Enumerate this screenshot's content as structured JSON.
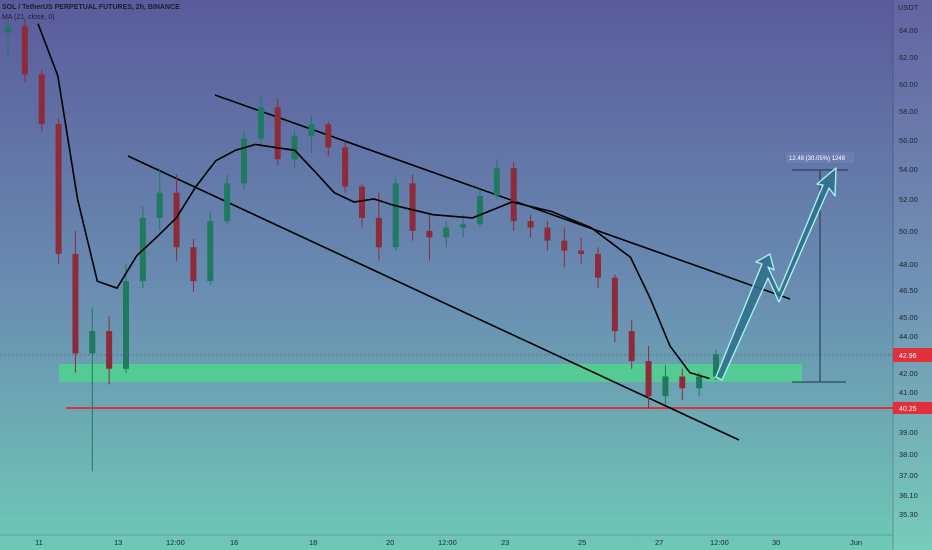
{
  "legend": {
    "symbol": "SOL / TetherUS PERPETUAL FUTURES, 2h, BINANCE",
    "indicator": "MA (21, close, 0)"
  },
  "chart_data": {
    "type": "candlestick",
    "title": "SOL / TetherUS PERPETUAL FUTURES, 2h, BINANCE",
    "currency_label": "USDT",
    "y_scale": "log",
    "y_ticks": [
      64.0,
      62.0,
      60.0,
      58.0,
      56.0,
      54.0,
      52.0,
      50.0,
      48.0,
      46.5,
      45.0,
      44.0,
      42.0,
      41.0,
      39.0,
      38.0,
      37.0,
      36.1,
      35.3
    ],
    "x_ticks": [
      "11",
      "13",
      "12:00",
      "16",
      "18",
      "20",
      "12:00",
      "23",
      "25",
      "27",
      "12:00",
      "30",
      "Jun"
    ],
    "last_price_tag": "42.96",
    "support_price_tag": "40.25",
    "measure_label": "12.48 (30.05%) 1248",
    "ma_label": "MA (21, close, 0)",
    "ma_points": [
      {
        "x": "11",
        "y": 64.5
      },
      {
        "x": "11.5",
        "y": 60.5
      },
      {
        "x": "12",
        "y": 52.0
      },
      {
        "x": "12.5",
        "y": 47.0
      },
      {
        "x": "13",
        "y": 46.6
      },
      {
        "x": "13.5",
        "y": 48.5
      },
      {
        "x": "14",
        "y": 49.6
      },
      {
        "x": "14.5",
        "y": 50.8
      },
      {
        "x": "15",
        "y": 52.8
      },
      {
        "x": "15.5",
        "y": 54.5
      },
      {
        "x": "16",
        "y": 55.2
      },
      {
        "x": "16.5",
        "y": 55.6
      },
      {
        "x": "17",
        "y": 55.4
      },
      {
        "x": "17.5",
        "y": 55.2
      },
      {
        "x": "18",
        "y": 53.8
      },
      {
        "x": "18.5",
        "y": 52.4
      },
      {
        "x": "19",
        "y": 51.8
      },
      {
        "x": "19.5",
        "y": 52.0
      },
      {
        "x": "20",
        "y": 51.6
      },
      {
        "x": "21",
        "y": 51.0
      },
      {
        "x": "22",
        "y": 50.8
      },
      {
        "x": "23",
        "y": 51.8
      },
      {
        "x": "24",
        "y": 51.2
      },
      {
        "x": "25",
        "y": 50.2
      },
      {
        "x": "26",
        "y": 48.4
      },
      {
        "x": "26.5",
        "y": 46.0
      },
      {
        "x": "27",
        "y": 43.4
      },
      {
        "x": "27.5",
        "y": 42.0
      },
      {
        "x": "28",
        "y": 41.7
      }
    ],
    "candles_approx": [
      {
        "t": "11",
        "o": 63.8,
        "h": 65.0,
        "l": 62.0,
        "c": 64.3
      },
      {
        "t": "11",
        "o": 64.3,
        "h": 64.8,
        "l": 60.0,
        "c": 60.6
      },
      {
        "t": "11",
        "o": 60.6,
        "h": 61.0,
        "l": 56.5,
        "c": 57.0
      },
      {
        "t": "12",
        "o": 57.0,
        "h": 57.4,
        "l": 48.0,
        "c": 48.6
      },
      {
        "t": "12",
        "o": 48.6,
        "h": 50.0,
        "l": 42.0,
        "c": 43.0
      },
      {
        "t": "12",
        "o": 43.0,
        "h": 45.5,
        "l": 37.2,
        "c": 44.2
      },
      {
        "t": "12",
        "o": 44.2,
        "h": 45.0,
        "l": 41.4,
        "c": 42.2
      },
      {
        "t": "13",
        "o": 42.2,
        "h": 48.0,
        "l": 42.0,
        "c": 47.0
      },
      {
        "t": "13",
        "o": 47.0,
        "h": 51.5,
        "l": 46.6,
        "c": 50.8
      },
      {
        "t": "13",
        "o": 50.8,
        "h": 54.0,
        "l": 50.0,
        "c": 52.4
      },
      {
        "t": "14",
        "o": 52.4,
        "h": 53.6,
        "l": 48.2,
        "c": 49.0
      },
      {
        "t": "14",
        "o": 49.0,
        "h": 49.5,
        "l": 46.4,
        "c": 47.0
      },
      {
        "t": "14",
        "o": 47.0,
        "h": 51.2,
        "l": 46.8,
        "c": 50.6
      },
      {
        "t": "15",
        "o": 50.6,
        "h": 53.6,
        "l": 50.4,
        "c": 53.0
      },
      {
        "t": "15",
        "o": 53.0,
        "h": 56.5,
        "l": 52.6,
        "c": 56.0
      },
      {
        "t": "15",
        "o": 56.0,
        "h": 59.0,
        "l": 55.5,
        "c": 58.2
      },
      {
        "t": "16",
        "o": 58.2,
        "h": 58.8,
        "l": 54.2,
        "c": 54.6
      },
      {
        "t": "16",
        "o": 54.6,
        "h": 56.6,
        "l": 54.0,
        "c": 56.2
      },
      {
        "t": "17",
        "o": 56.2,
        "h": 57.6,
        "l": 55.0,
        "c": 57.0
      },
      {
        "t": "17",
        "o": 57.0,
        "h": 57.2,
        "l": 54.8,
        "c": 55.4
      },
      {
        "t": "18",
        "o": 55.4,
        "h": 55.8,
        "l": 52.4,
        "c": 52.8
      },
      {
        "t": "18",
        "o": 52.8,
        "h": 53.0,
        "l": 50.2,
        "c": 50.8
      },
      {
        "t": "19",
        "o": 50.8,
        "h": 52.4,
        "l": 48.2,
        "c": 49.0
      },
      {
        "t": "19",
        "o": 49.0,
        "h": 53.4,
        "l": 48.8,
        "c": 53.0
      },
      {
        "t": "20",
        "o": 53.0,
        "h": 53.6,
        "l": 49.4,
        "c": 50.0
      },
      {
        "t": "20",
        "o": 50.0,
        "h": 51.0,
        "l": 48.2,
        "c": 49.6
      },
      {
        "t": "21",
        "o": 49.6,
        "h": 50.6,
        "l": 49.0,
        "c": 50.2
      },
      {
        "t": "22",
        "o": 50.2,
        "h": 51.0,
        "l": 49.6,
        "c": 50.4
      },
      {
        "t": "22",
        "o": 50.4,
        "h": 52.6,
        "l": 50.2,
        "c": 52.2
      },
      {
        "t": "23",
        "o": 52.2,
        "h": 54.6,
        "l": 52.0,
        "c": 54.0
      },
      {
        "t": "23",
        "o": 54.0,
        "h": 54.4,
        "l": 50.0,
        "c": 50.6
      },
      {
        "t": "24",
        "o": 50.6,
        "h": 51.0,
        "l": 49.6,
        "c": 50.2
      },
      {
        "t": "24",
        "o": 50.2,
        "h": 50.6,
        "l": 48.8,
        "c": 49.4
      },
      {
        "t": "25",
        "o": 49.4,
        "h": 50.2,
        "l": 47.8,
        "c": 48.8
      },
      {
        "t": "25",
        "o": 48.8,
        "h": 49.6,
        "l": 48.0,
        "c": 48.6
      },
      {
        "t": "26",
        "o": 48.6,
        "h": 49.0,
        "l": 46.6,
        "c": 47.2
      },
      {
        "t": "26",
        "o": 47.2,
        "h": 47.4,
        "l": 43.6,
        "c": 44.2
      },
      {
        "t": "26",
        "o": 44.2,
        "h": 44.8,
        "l": 42.2,
        "c": 42.6
      },
      {
        "t": "27",
        "o": 42.6,
        "h": 43.4,
        "l": 40.2,
        "c": 40.8
      },
      {
        "t": "27",
        "o": 40.8,
        "h": 42.4,
        "l": 40.4,
        "c": 41.8
      },
      {
        "t": "27",
        "o": 41.8,
        "h": 42.2,
        "l": 40.6,
        "c": 41.2
      },
      {
        "t": "28",
        "o": 41.2,
        "h": 42.0,
        "l": 40.8,
        "c": 41.8
      },
      {
        "t": "28",
        "o": 41.8,
        "h": 43.2,
        "l": 41.6,
        "c": 42.96
      }
    ],
    "annotations": [
      {
        "type": "support-zone",
        "low": 41.5,
        "high": 42.3
      },
      {
        "type": "horizontal-line",
        "price": 40.25
      },
      {
        "type": "falling-channel",
        "upper": [
          {
            "x": "15",
            "y": 59.0
          },
          {
            "x": "30",
            "y": 46.0
          }
        ],
        "lower": [
          {
            "x": "13",
            "y": 55.0
          },
          {
            "x": "28",
            "y": 38.8
          }
        ]
      },
      {
        "type": "projection-arrow",
        "from": 42.2,
        "to": 54.0
      },
      {
        "type": "measure",
        "from": 41.5,
        "to": 54.0,
        "label": "12.48 (30.05%) 1248"
      }
    ]
  },
  "colors": {
    "bg_top": "#5a5b9c",
    "bg_bottom": "#6ec9b6",
    "candle_up": "#1f7a60",
    "candle_down": "#8d2b3a",
    "ma_line": "#000000",
    "support_zone": "#4cd98a",
    "support_line": "#e0303a",
    "price_tag": "#e0303a",
    "arrow_fill": "#2f6f8c",
    "arrow_stroke": "#a7f1ec"
  }
}
